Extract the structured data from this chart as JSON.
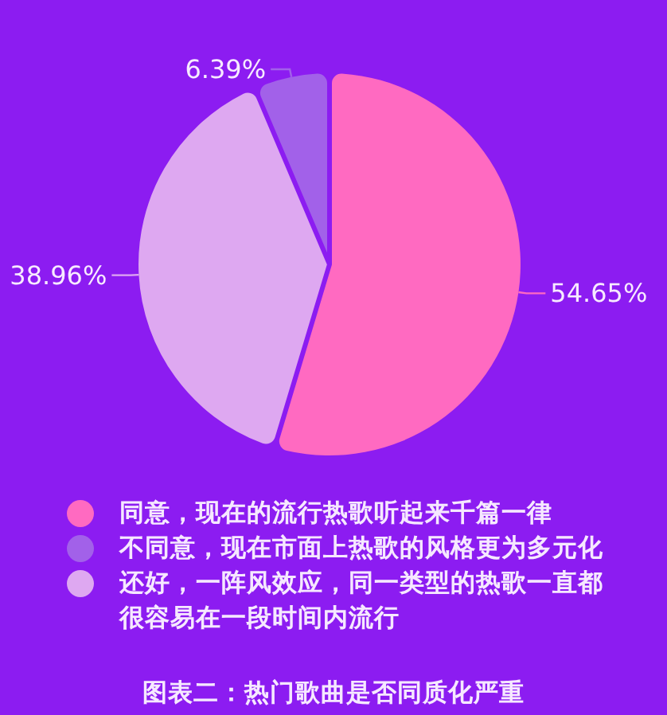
{
  "chart_data": {
    "type": "pie",
    "title": "图表二：热门歌曲是否同质化严重",
    "categories": [
      "同意，现在的流行热歌听起来千篇一律",
      "不同意，现在市面上热歌的风格更为多元化",
      "还好，一阵风效应，同一类型的热歌一直都很容易在一段时间内流行"
    ],
    "values": [
      54.65,
      6.39,
      38.96
    ],
    "colors": [
      "#ff6ac1",
      "#a261e9",
      "#dea8f1"
    ],
    "value_labels": [
      "54.65%",
      "6.39%",
      "38.96%"
    ],
    "legend": "bottom"
  }
}
